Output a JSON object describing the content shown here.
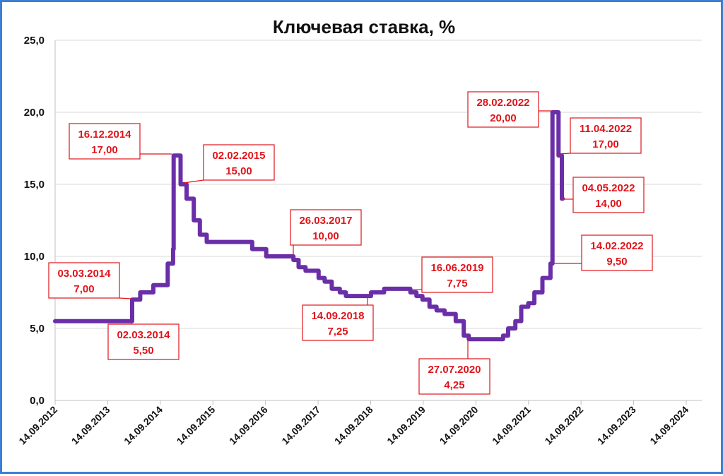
{
  "chart_data": {
    "type": "line",
    "title": "Ключевая ставка, %",
    "xlabel": "",
    "ylabel": "",
    "ylim": [
      0,
      25
    ],
    "yticks": [
      "0,0",
      "5,0",
      "10,0",
      "15,0",
      "20,0",
      "25,0"
    ],
    "xticks": [
      "14.09.2012",
      "14.09.2013",
      "14.09.2014",
      "14.09.2015",
      "14.09.2016",
      "14.09.2017",
      "14.09.2018",
      "14.09.2019",
      "14.09.2020",
      "14.09.2021",
      "14.09.2022",
      "14.09.2023",
      "14.09.2024"
    ],
    "grid": true,
    "legend": "none",
    "colors": {
      "line": "#6a2fa8",
      "annotation": "#e0141a",
      "grid": "#d9d9d9",
      "frame": "#3b7fd4"
    },
    "series": [
      {
        "values": [
          [
            "2012-09-14",
            5.5
          ],
          [
            "2013-09-13",
            5.5
          ],
          [
            "2014-03-03",
            7.0
          ],
          [
            "2014-04-28",
            7.5
          ],
          [
            "2014-07-28",
            8.0
          ],
          [
            "2014-11-05",
            9.5
          ],
          [
            "2014-12-12",
            10.5
          ],
          [
            "2014-12-16",
            17.0
          ],
          [
            "2015-02-02",
            15.0
          ],
          [
            "2015-03-16",
            14.0
          ],
          [
            "2015-05-05",
            12.5
          ],
          [
            "2015-06-16",
            11.5
          ],
          [
            "2015-08-03",
            11.0
          ],
          [
            "2016-06-14",
            10.5
          ],
          [
            "2016-09-19",
            10.0
          ],
          [
            "2017-03-27",
            9.75
          ],
          [
            "2017-05-02",
            9.25
          ],
          [
            "2017-06-19",
            9.0
          ],
          [
            "2017-09-18",
            8.5
          ],
          [
            "2017-10-30",
            8.25
          ],
          [
            "2017-12-18",
            7.75
          ],
          [
            "2018-02-12",
            7.5
          ],
          [
            "2018-03-26",
            7.25
          ],
          [
            "2018-09-17",
            7.5
          ],
          [
            "2018-12-17",
            7.75
          ],
          [
            "2019-06-17",
            7.5
          ],
          [
            "2019-07-29",
            7.25
          ],
          [
            "2019-09-09",
            7.0
          ],
          [
            "2019-10-28",
            6.5
          ],
          [
            "2019-12-16",
            6.25
          ],
          [
            "2020-02-10",
            6.0
          ],
          [
            "2020-04-27",
            5.5
          ],
          [
            "2020-06-22",
            4.5
          ],
          [
            "2020-07-27",
            4.25
          ],
          [
            "2021-03-22",
            4.5
          ],
          [
            "2021-04-26",
            5.0
          ],
          [
            "2021-06-15",
            5.5
          ],
          [
            "2021-07-26",
            6.5
          ],
          [
            "2021-09-13",
            6.75
          ],
          [
            "2021-10-25",
            7.5
          ],
          [
            "2021-12-20",
            8.5
          ],
          [
            "2022-02-14",
            9.5
          ],
          [
            "2022-02-28",
            20.0
          ],
          [
            "2022-04-11",
            17.0
          ],
          [
            "2022-05-04",
            14.0
          ],
          [
            "2022-05-10",
            14.0
          ]
        ]
      }
    ],
    "annotations": [
      {
        "date": "2014-12-16",
        "label": "16.12.2014",
        "value": "17,00"
      },
      {
        "date": "2015-02-02",
        "label": "02.02.2015",
        "value": "15,00"
      },
      {
        "date": "2014-03-03",
        "label": "03.03.2014",
        "value": "7,00"
      },
      {
        "date": "2014-03-02",
        "label": "02.03.2014",
        "value": "5,50"
      },
      {
        "date": "2017-03-26",
        "label": "26.03.2017",
        "value": "10,00"
      },
      {
        "date": "2018-09-14",
        "label": "14.09.2018",
        "value": "7,25"
      },
      {
        "date": "2019-06-16",
        "label": "16.06.2019",
        "value": "7,75"
      },
      {
        "date": "2020-07-27",
        "label": "27.07.2020",
        "value": "4,25"
      },
      {
        "date": "2022-02-28",
        "label": "28.02.2022",
        "value": "20,00"
      },
      {
        "date": "2022-04-11",
        "label": "11.04.2022",
        "value": "17,00"
      },
      {
        "date": "2022-05-04",
        "label": "04.05.2022",
        "value": "14,00"
      },
      {
        "date": "2022-02-14",
        "label": "14.02.2022",
        "value": "9,50"
      }
    ]
  }
}
